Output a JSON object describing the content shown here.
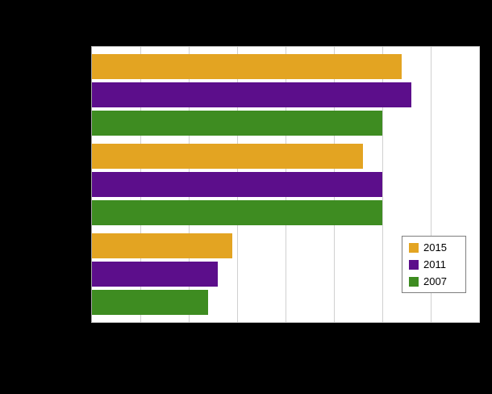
{
  "page": {
    "background_color": "#000000",
    "plot_background_color": "#ffffff"
  },
  "chart_data": {
    "type": "bar",
    "orientation": "horizontal",
    "title": "",
    "xlabel": "",
    "ylabel": "",
    "xlim": [
      0,
      80
    ],
    "grid": true,
    "gridline_intervals": 8,
    "categories": [
      "",
      "",
      ""
    ],
    "series": [
      {
        "name": "2015",
        "color": "#E3A422",
        "values": [
          64,
          56,
          29
        ]
      },
      {
        "name": "2011",
        "color": "#5C0E8B",
        "values": [
          66,
          60,
          26
        ]
      },
      {
        "name": "2007",
        "color": "#3E8C21",
        "values": [
          60,
          60,
          24
        ]
      }
    ],
    "legend_position": "bottom-right",
    "legend_entries": [
      "2015",
      "2011",
      "2007"
    ]
  }
}
